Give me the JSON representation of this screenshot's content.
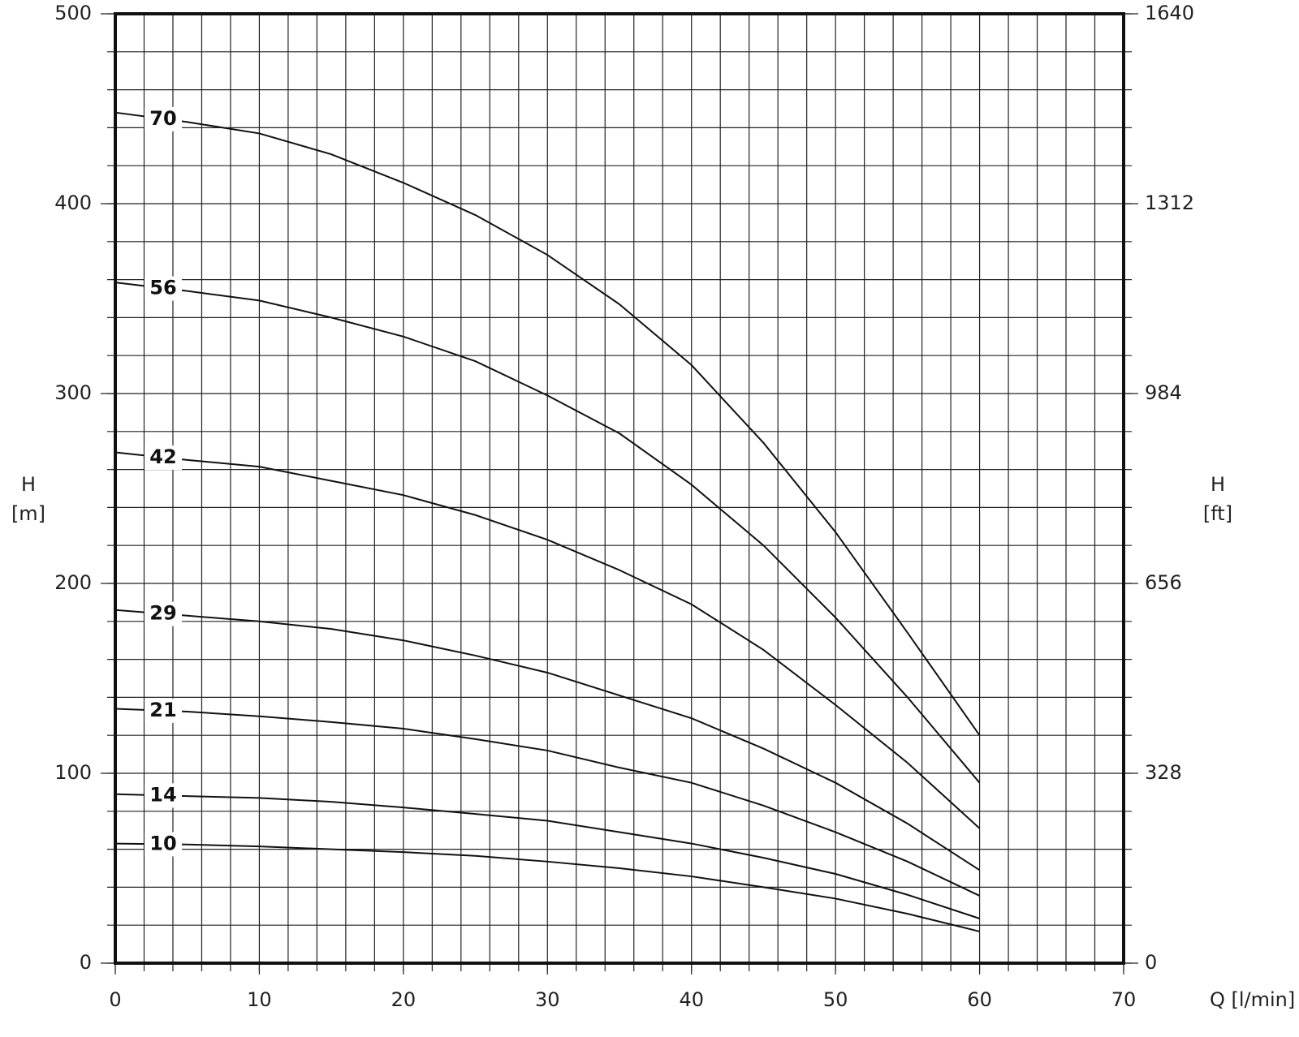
{
  "chart_data": {
    "type": "line",
    "x_label": "Q [l/min]",
    "y_label_lines": [
      "H",
      "[m]"
    ],
    "y2_label_lines": [
      "H",
      "[ft]"
    ],
    "x": [
      0,
      5,
      10,
      15,
      20,
      25,
      30,
      35,
      40,
      45,
      50,
      55,
      60
    ],
    "series": [
      {
        "name": "70",
        "color": "#111111",
        "values": [
          448,
          443,
          437,
          426,
          411,
          394,
          373,
          347,
          315,
          274,
          227,
          174,
          120
        ]
      },
      {
        "name": "56",
        "color": "#111111",
        "values": [
          358.5,
          354,
          349,
          340,
          330,
          317,
          299,
          279,
          252,
          220,
          182,
          140,
          95
        ]
      },
      {
        "name": "42",
        "color": "#111111",
        "values": [
          269,
          265,
          261.5,
          254,
          246.5,
          236,
          223,
          207,
          189,
          165,
          136,
          105.5,
          71
        ]
      },
      {
        "name": "29",
        "color": "#111111",
        "values": [
          186,
          183,
          180,
          176,
          170,
          162,
          153,
          141,
          129,
          113,
          95,
          73.5,
          49
        ]
      },
      {
        "name": "21",
        "color": "#111111",
        "values": [
          134,
          132.5,
          130,
          127,
          123.5,
          118,
          112,
          103,
          95,
          83,
          69,
          53.5,
          35.5
        ]
      },
      {
        "name": "14",
        "color": "#111111",
        "values": [
          89,
          88,
          87,
          85,
          82,
          78.6,
          75,
          69,
          63,
          55.5,
          47,
          36,
          23.5
        ]
      },
      {
        "name": "10",
        "color": "#111111",
        "values": [
          63,
          62.5,
          61.5,
          60,
          58.5,
          56.5,
          53.5,
          50,
          45.7,
          40,
          34,
          26,
          16.7
        ]
      }
    ],
    "xlim": [
      0,
      70
    ],
    "xticks": [
      0,
      10,
      20,
      30,
      40,
      50,
      60,
      70
    ],
    "x_grid": [
      0,
      2,
      4,
      6,
      8,
      10,
      12,
      14,
      16,
      18,
      20,
      22,
      24,
      26,
      28,
      30,
      32,
      34,
      36,
      38,
      40,
      42,
      44,
      46,
      48,
      50,
      52,
      54,
      56,
      58,
      60,
      62,
      64,
      66,
      68,
      70
    ],
    "ylim": [
      0,
      500
    ],
    "yticks": [
      0,
      100,
      200,
      300,
      400,
      500
    ],
    "y_grid": [
      0,
      20,
      40,
      60,
      80,
      100,
      120,
      140,
      160,
      180,
      200,
      220,
      240,
      260,
      280,
      300,
      320,
      340,
      360,
      380,
      400,
      420,
      440,
      460,
      480,
      500
    ],
    "y2lim": [
      0,
      1640
    ],
    "y2ticks": [
      0,
      328,
      656,
      984,
      1312,
      1640
    ],
    "grid": true
  }
}
